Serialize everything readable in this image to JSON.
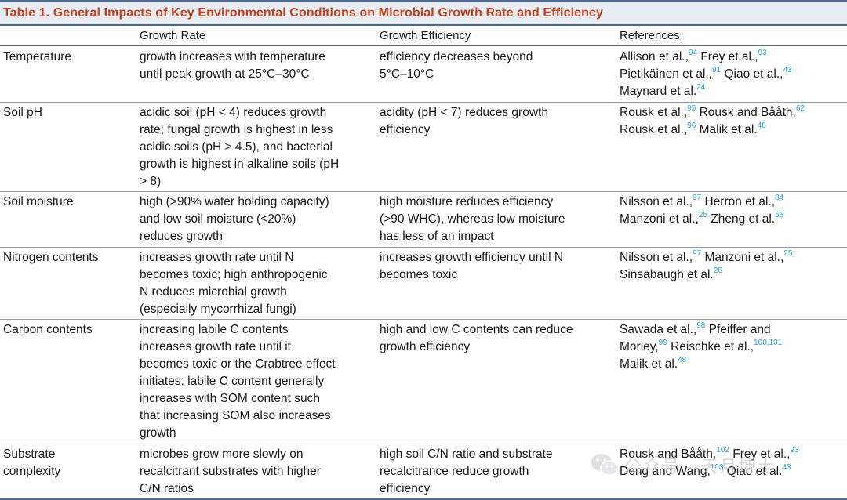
{
  "caption": "Table 1.  General Impacts of Key Environmental Conditions on Microbial Growth Rate and Efficiency",
  "headers": [
    "",
    "Growth Rate",
    "Growth Efficiency",
    "References"
  ],
  "rows": [
    {
      "condition": [
        "Temperature"
      ],
      "rate": [
        "growth increases with temperature",
        "until peak growth at 25°C–30°C"
      ],
      "efficiency": [
        "efficiency decreases beyond",
        "5°C–10°C"
      ],
      "references": [
        [
          {
            "t": "Allison et al.,",
            "s": "94"
          },
          {
            "t": " Frey et al.,",
            "s": "93"
          }
        ],
        [
          {
            "t": "Pietikäinen et al.,",
            "s": "91"
          },
          {
            "t": " Qiao et al.,",
            "s": "43"
          }
        ],
        [
          {
            "t": "Maynard et al.",
            "s": "24"
          }
        ]
      ]
    },
    {
      "condition": [
        "Soil pH"
      ],
      "rate": [
        "acidic soil (pH < 4) reduces growth",
        "rate; fungal growth is highest in less",
        "acidic soils (pH > 4.5), and bacterial",
        "growth is highest in alkaline soils (pH",
        "> 8)"
      ],
      "efficiency": [
        "acidity (pH < 7) reduces growth",
        "efficiency"
      ],
      "references": [
        [
          {
            "t": "Rousk et al.,",
            "s": "95"
          },
          {
            "t": " Rousk and Bååth,",
            "s": "62"
          }
        ],
        [
          {
            "t": "Rousk et al.,",
            "s": "96"
          },
          {
            "t": " Malik et al.",
            "s": "48"
          }
        ]
      ]
    },
    {
      "condition": [
        "Soil moisture"
      ],
      "rate": [
        "high (>90% water holding capacity)",
        "and low soil moisture (<20%)",
        "reduces growth"
      ],
      "efficiency": [
        "high moisture reduces efficiency",
        "(>90 WHC), whereas low moisture",
        "has less of an impact"
      ],
      "references": [
        [
          {
            "t": "Nilsson et al.,",
            "s": "97"
          },
          {
            "t": " Herron et al.,",
            "s": "84"
          }
        ],
        [
          {
            "t": "Manzoni et al.,",
            "s": "25"
          },
          {
            "t": " Zheng et al.",
            "s": "55"
          }
        ]
      ]
    },
    {
      "condition": [
        "Nitrogen contents"
      ],
      "rate": [
        "increases growth rate until N",
        "becomes toxic; high anthropogenic",
        "N reduces microbial growth",
        "(especially mycorrhizal fungi)"
      ],
      "efficiency": [
        "increases growth efficiency until N",
        "becomes toxic"
      ],
      "references": [
        [
          {
            "t": "Nilsson et al.,",
            "s": "97"
          },
          {
            "t": " Manzoni et al.,",
            "s": "25"
          }
        ],
        [
          {
            "t": "Sinsabaugh et al.",
            "s": "26"
          }
        ]
      ]
    },
    {
      "condition": [
        "Carbon contents"
      ],
      "rate": [
        "increasing labile C contents",
        "increases growth rate until it",
        "becomes toxic or the Crabtree effect",
        "initiates; labile C content generally",
        "increases with SOM content such",
        "that increasing SOM also increases",
        "growth"
      ],
      "efficiency": [
        "high and low C contents can reduce",
        "growth efficiency"
      ],
      "references": [
        [
          {
            "t": "Sawada et al.,",
            "s": "98"
          },
          {
            "t": " Pfeiffer and",
            "s": ""
          }
        ],
        [
          {
            "t": "Morley,",
            "s": "99"
          },
          {
            "t": " Reischke et al.,",
            "s": "100,101"
          }
        ],
        [
          {
            "t": "Malik et al.",
            "s": "48"
          }
        ]
      ]
    },
    {
      "condition": [
        "Substrate",
        "complexity"
      ],
      "rate": [
        "microbes grow more slowly on",
        "recalcitrant substrates with higher",
        "C/N ratios"
      ],
      "efficiency": [
        "high soil C/N ratio and substrate",
        "recalcitrance reduce growth",
        "efficiency"
      ],
      "references": [
        [
          {
            "t": "Rousk and Bååth,",
            "s": "102"
          },
          {
            "t": " Frey et al.,",
            "s": "93"
          }
        ],
        [
          {
            "t": "Deng and Wang,",
            "s": "103"
          },
          {
            "t": " Qiao et al.",
            "s": "43"
          }
        ]
      ]
    }
  ],
  "watermark": "公众号 · 天月博士",
  "colors": {
    "caption_text": "#c8401d",
    "caption_bg": "#e8edf4",
    "rule": "#4a6a9a",
    "superscript": "#2a9fd8"
  }
}
